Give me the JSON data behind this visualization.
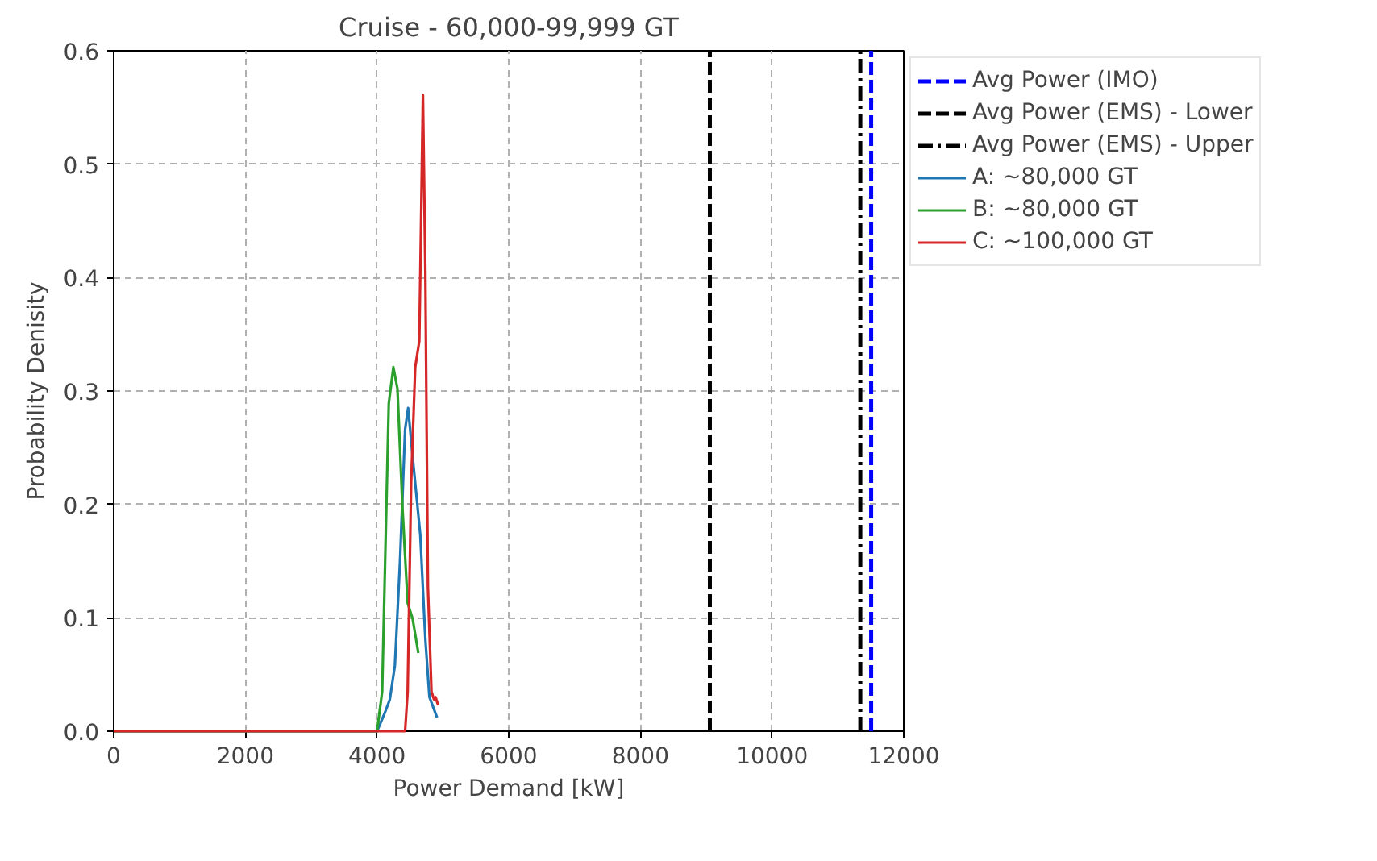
{
  "chart_data": {
    "type": "line",
    "title": "Cruise - 60,000-99,999 GT",
    "xlabel": "Power Demand [kW]",
    "ylabel": "Probability Denisity",
    "xlim": [
      0,
      12000
    ],
    "xticks": [
      0,
      2000,
      4000,
      6000,
      8000,
      10000,
      12000
    ],
    "ylim": [
      0,
      0.6
    ],
    "yticks": [
      {
        "value": 0,
        "label": "0.0"
      },
      {
        "value": 0.1,
        "label": "0.1"
      },
      {
        "value": 0.2,
        "label": "0.2"
      },
      {
        "value": 0.3,
        "label": "0.3"
      },
      {
        "value": 0.4,
        "label": "0.4"
      },
      {
        "value": 0.5,
        "label": "0.5"
      },
      {
        "value": 0.6,
        "label": "0.6"
      }
    ],
    "grid": true,
    "legend": "right",
    "line_style": "solid",
    "series": [
      {
        "name": "Avg Power (IMO)",
        "color": "#0000ff",
        "line_style": "dashed",
        "x": [
          11505,
          11505
        ],
        "values": [
          0,
          0.6
        ]
      },
      {
        "name": "Avg Power (EMS) - Lower",
        "color": "#000000",
        "line_style": "dashed",
        "x": [
          9055,
          9055
        ],
        "values": [
          0,
          0.6
        ]
      },
      {
        "name": "Avg Power (EMS) - Upper",
        "color": "#000000",
        "line_style": "dashdot",
        "x": [
          11340,
          11340
        ],
        "values": [
          0,
          0.6
        ]
      },
      {
        "name": "A: ~80,000 GT",
        "color": "#1f77b4",
        "x": [
          0,
          4000,
          4117,
          4194,
          4271,
          4349,
          4426,
          4472,
          4541,
          4657,
          4734,
          4796,
          4912
        ],
        "values": [
          0,
          0,
          0.016,
          0.028,
          0.058,
          0.15,
          0.266,
          0.285,
          0.242,
          0.173,
          0.081,
          0.03,
          0.012
        ]
      },
      {
        "name": "B: ~80,000 GT",
        "color": "#2ca02c",
        "x": [
          0,
          4000,
          4078,
          4132,
          4178,
          4248,
          4310,
          4387,
          4465,
          4541,
          4627
        ],
        "values": [
          0,
          0,
          0.035,
          0.173,
          0.289,
          0.321,
          0.302,
          0.196,
          0.113,
          0.099,
          0.069
        ]
      },
      {
        "name": "C: ~100,000 GT",
        "color": "#d62728",
        "x": [
          0,
          4426,
          4465,
          4518,
          4580,
          4642,
          4697,
          4734,
          4773,
          4827,
          4865,
          4889,
          4928
        ],
        "values": [
          0,
          0,
          0.035,
          0.219,
          0.321,
          0.344,
          0.561,
          0.404,
          0.127,
          0.035,
          0.028,
          0.03,
          0.023
        ]
      }
    ]
  }
}
